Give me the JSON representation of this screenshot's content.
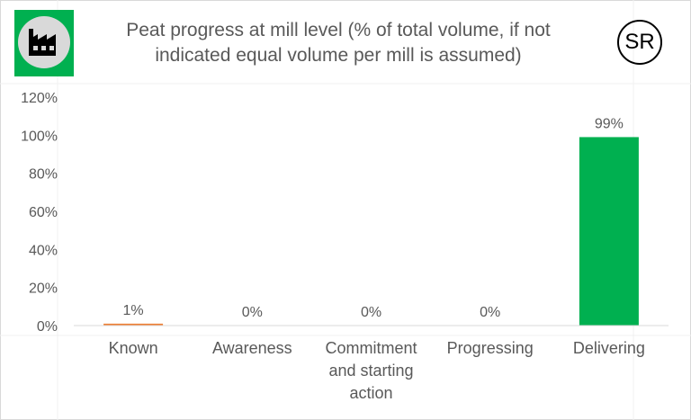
{
  "chart_title": "Peat progress at mill level (% of total volume, if not indicated equal volume per mill is assumed)",
  "title_lines": [
    "Peat progress at mill level (% of total volume, if not",
    "indicated equal volume per mill is assumed)"
  ],
  "badge_text": "SR",
  "logo_icon": "factory-icon",
  "colors": {
    "logo_bg": "#00b050",
    "known": "#ed7d31",
    "delivering": "#00b050",
    "text": "#595959"
  },
  "chart_data": {
    "type": "bar",
    "title": "Peat progress at mill level (% of total volume, if not indicated equal volume per mill is assumed)",
    "categories": [
      "Known",
      "Awareness",
      "Commitment and starting action",
      "Progressing",
      "Delivering"
    ],
    "category_lines": [
      [
        "Known"
      ],
      [
        "Awareness"
      ],
      [
        "Commitment",
        "and starting",
        "action"
      ],
      [
        "Progressing"
      ],
      [
        "Delivering"
      ]
    ],
    "values": [
      1,
      0,
      0,
      0,
      99
    ],
    "data_labels": [
      "1%",
      "0%",
      "0%",
      "0%",
      "99%"
    ],
    "bar_colors": [
      "#ed7d31",
      "#a5a5a5",
      "#a5a5a5",
      "#a5a5a5",
      "#00b050"
    ],
    "yticks": [
      0,
      20,
      40,
      60,
      80,
      100,
      120
    ],
    "ytick_labels": [
      "0%",
      "20%",
      "40%",
      "60%",
      "80%",
      "100%",
      "120%"
    ],
    "ylim": [
      0,
      120
    ],
    "grid": false,
    "legend": "none"
  }
}
